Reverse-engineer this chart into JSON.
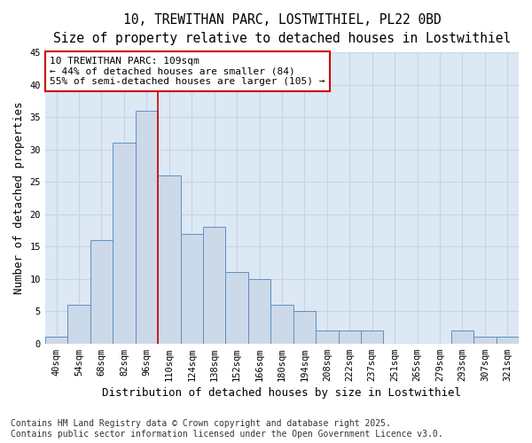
{
  "title_line1": "10, TREWITHAN PARC, LOSTWITHIEL, PL22 0BD",
  "title_line2": "Size of property relative to detached houses in Lostwithiel",
  "xlabel": "Distribution of detached houses by size in Lostwithiel",
  "ylabel": "Number of detached properties",
  "bar_labels": [
    "40sqm",
    "54sqm",
    "68sqm",
    "82sqm",
    "96sqm",
    "110sqm",
    "124sqm",
    "138sqm",
    "152sqm",
    "166sqm",
    "180sqm",
    "194sqm",
    "208sqm",
    "222sqm",
    "237sqm",
    "251sqm",
    "265sqm",
    "279sqm",
    "293sqm",
    "307sqm",
    "321sqm"
  ],
  "bar_values": [
    1,
    6,
    16,
    31,
    36,
    26,
    17,
    18,
    11,
    10,
    6,
    5,
    2,
    2,
    2,
    0,
    0,
    0,
    2,
    1,
    1
  ],
  "bar_color": "#ccd9e8",
  "bar_edgecolor": "#6090c0",
  "vline_x_index": 5,
  "vline_color": "#cc0000",
  "annotation_text": "10 TREWITHAN PARC: 109sqm\n← 44% of detached houses are smaller (84)\n55% of semi-detached houses are larger (105) →",
  "annotation_box_edgecolor": "#cc0000",
  "annotation_box_facecolor": "#ffffff",
  "ylim": [
    0,
    45
  ],
  "yticks": [
    0,
    5,
    10,
    15,
    20,
    25,
    30,
    35,
    40,
    45
  ],
  "grid_color": "#c8d4e4",
  "background_color": "#dce8f4",
  "footer_text": "Contains HM Land Registry data © Crown copyright and database right 2025.\nContains public sector information licensed under the Open Government Licence v3.0.",
  "title_fontsize": 10.5,
  "subtitle_fontsize": 9.5,
  "axis_label_fontsize": 9,
  "tick_fontsize": 7.5,
  "annotation_fontsize": 8,
  "footer_fontsize": 7
}
